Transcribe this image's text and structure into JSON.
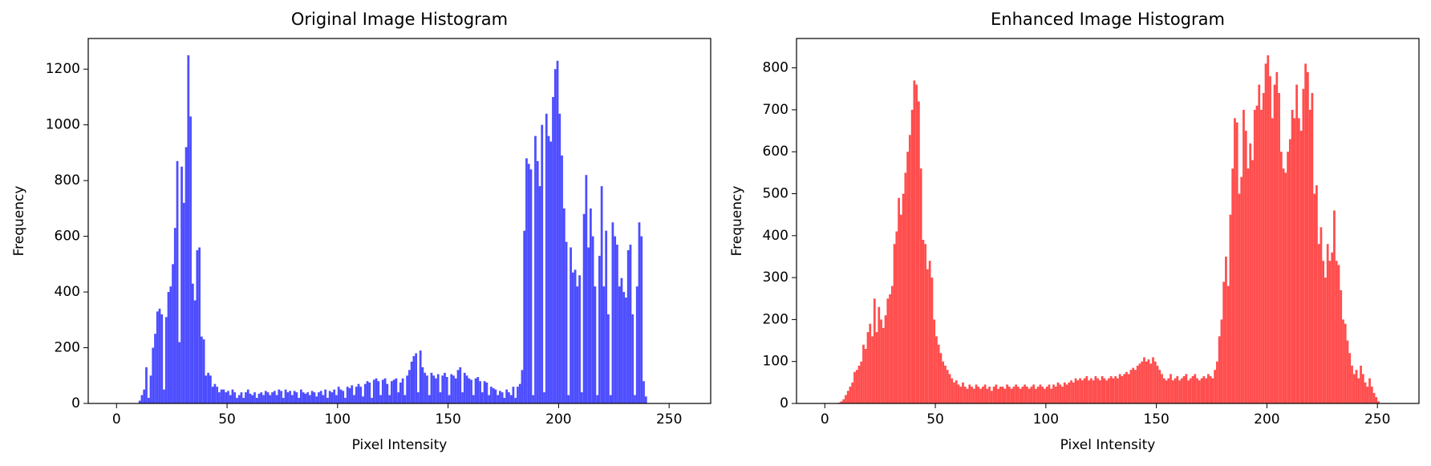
{
  "chart_data": [
    {
      "type": "histogram",
      "title": "Original Image Histogram",
      "xlabel": "Pixel Intensity",
      "ylabel": "Frequency",
      "color": "#4d4dff",
      "bins": [
        0,
        1,
        2,
        3,
        4,
        5,
        6,
        7,
        8,
        9,
        10,
        11,
        12,
        13,
        14,
        15,
        16,
        17,
        18,
        19,
        20,
        21,
        22,
        23,
        24,
        25,
        26,
        27,
        28,
        29,
        30,
        31,
        32,
        33,
        34,
        35,
        36,
        37,
        38,
        39,
        40,
        41,
        42,
        43,
        44,
        45,
        46,
        47,
        48,
        49,
        50,
        51,
        52,
        53,
        54,
        55,
        56,
        57,
        58,
        59,
        60,
        61,
        62,
        63,
        64,
        65,
        66,
        67,
        68,
        69,
        70,
        71,
        72,
        73,
        74,
        75,
        76,
        77,
        78,
        79,
        80,
        81,
        82,
        83,
        84,
        85,
        86,
        87,
        88,
        89,
        90,
        91,
        92,
        93,
        94,
        95,
        96,
        97,
        98,
        99,
        100,
        101,
        102,
        103,
        104,
        105,
        106,
        107,
        108,
        109,
        110,
        111,
        112,
        113,
        114,
        115,
        116,
        117,
        118,
        119,
        120,
        121,
        122,
        123,
        124,
        125,
        126,
        127,
        128,
        129,
        130,
        131,
        132,
        133,
        134,
        135,
        136,
        137,
        138,
        139,
        140,
        141,
        142,
        143,
        144,
        145,
        146,
        147,
        148,
        149,
        150,
        151,
        152,
        153,
        154,
        155,
        156,
        157,
        158,
        159,
        160,
        161,
        162,
        163,
        164,
        165,
        166,
        167,
        168,
        169,
        170,
        171,
        172,
        173,
        174,
        175,
        176,
        177,
        178,
        179,
        180,
        181,
        182,
        183,
        184,
        185,
        186,
        187,
        188,
        189,
        190,
        191,
        192,
        193,
        194,
        195,
        196,
        197,
        198,
        199,
        200,
        201,
        202,
        203,
        204,
        205,
        206,
        207,
        208,
        209,
        210,
        211,
        212,
        213,
        214,
        215,
        216,
        217,
        218,
        219,
        220,
        221,
        222,
        223,
        224,
        225,
        226,
        227,
        228,
        229,
        230,
        231,
        232,
        233,
        234,
        235,
        236,
        237,
        238,
        239,
        240,
        241,
        242,
        243,
        244,
        245,
        246,
        247,
        248,
        249,
        250,
        251,
        252,
        253,
        254,
        255,
        256
      ],
      "values": [
        0,
        0,
        0,
        0,
        0,
        0,
        0,
        0,
        0,
        0,
        10,
        30,
        50,
        130,
        20,
        100,
        200,
        250,
        330,
        340,
        320,
        50,
        310,
        400,
        420,
        500,
        630,
        870,
        220,
        850,
        720,
        920,
        1250,
        1030,
        430,
        370,
        550,
        560,
        240,
        230,
        100,
        110,
        100,
        60,
        70,
        60,
        40,
        50,
        50,
        40,
        45,
        30,
        50,
        40,
        20,
        30,
        40,
        20,
        40,
        50,
        35,
        30,
        40,
        20,
        35,
        40,
        30,
        45,
        40,
        30,
        40,
        45,
        30,
        50,
        45,
        20,
        50,
        40,
        45,
        30,
        45,
        40,
        20,
        50,
        40,
        35,
        40,
        30,
        45,
        40,
        25,
        40,
        45,
        30,
        50,
        20,
        45,
        40,
        50,
        30,
        60,
        50,
        45,
        20,
        60,
        55,
        65,
        30,
        60,
        70,
        60,
        25,
        70,
        80,
        75,
        20,
        85,
        90,
        80,
        30,
        85,
        90,
        70,
        30,
        80,
        85,
        90,
        40,
        75,
        90,
        30,
        100,
        120,
        150,
        170,
        180,
        40,
        190,
        130,
        110,
        100,
        30,
        110,
        100,
        90,
        105,
        40,
        100,
        110,
        95,
        30,
        105,
        100,
        90,
        120,
        130,
        40,
        110,
        100,
        90,
        85,
        30,
        90,
        95,
        80,
        40,
        80,
        75,
        30,
        60,
        55,
        50,
        30,
        45,
        40,
        20,
        50,
        40,
        30,
        60,
        20,
        60,
        70,
        120,
        620,
        880,
        860,
        840,
        30,
        960,
        870,
        780,
        1000,
        40,
        1040,
        960,
        940,
        1100,
        1200,
        1230,
        1040,
        890,
        700,
        580,
        30,
        560,
        470,
        480,
        420,
        460,
        40,
        680,
        820,
        560,
        700,
        600,
        420,
        30,
        530,
        780,
        420,
        620,
        320,
        30,
        650,
        600,
        570,
        420,
        450,
        400,
        380,
        550,
        570,
        320,
        30,
        420,
        650,
        600,
        80,
        25,
        0,
        0,
        0,
        0,
        0,
        0,
        0,
        0,
        0,
        0,
        0,
        0,
        0,
        0,
        0,
        0
      ],
      "xlim": [
        -12.8,
        268.8
      ],
      "ylim": [
        0,
        1310
      ],
      "xticks": [
        0,
        50,
        100,
        150,
        200,
        250
      ],
      "yticks": [
        0,
        200,
        400,
        600,
        800,
        1000,
        1200
      ]
    },
    {
      "type": "histogram",
      "title": "Enhanced Image Histogram",
      "xlabel": "Pixel Intensity",
      "ylabel": "Frequency",
      "color": "#ff4d4d",
      "bins": [
        0,
        1,
        2,
        3,
        4,
        5,
        6,
        7,
        8,
        9,
        10,
        11,
        12,
        13,
        14,
        15,
        16,
        17,
        18,
        19,
        20,
        21,
        22,
        23,
        24,
        25,
        26,
        27,
        28,
        29,
        30,
        31,
        32,
        33,
        34,
        35,
        36,
        37,
        38,
        39,
        40,
        41,
        42,
        43,
        44,
        45,
        46,
        47,
        48,
        49,
        50,
        51,
        52,
        53,
        54,
        55,
        56,
        57,
        58,
        59,
        60,
        61,
        62,
        63,
        64,
        65,
        66,
        67,
        68,
        69,
        70,
        71,
        72,
        73,
        74,
        75,
        76,
        77,
        78,
        79,
        80,
        81,
        82,
        83,
        84,
        85,
        86,
        87,
        88,
        89,
        90,
        91,
        92,
        93,
        94,
        95,
        96,
        97,
        98,
        99,
        100,
        101,
        102,
        103,
        104,
        105,
        106,
        107,
        108,
        109,
        110,
        111,
        112,
        113,
        114,
        115,
        116,
        117,
        118,
        119,
        120,
        121,
        122,
        123,
        124,
        125,
        126,
        127,
        128,
        129,
        130,
        131,
        132,
        133,
        134,
        135,
        136,
        137,
        138,
        139,
        140,
        141,
        142,
        143,
        144,
        145,
        146,
        147,
        148,
        149,
        150,
        151,
        152,
        153,
        154,
        155,
        156,
        157,
        158,
        159,
        160,
        161,
        162,
        163,
        164,
        165,
        166,
        167,
        168,
        169,
        170,
        171,
        172,
        173,
        174,
        175,
        176,
        177,
        178,
        179,
        180,
        181,
        182,
        183,
        184,
        185,
        186,
        187,
        188,
        189,
        190,
        191,
        192,
        193,
        194,
        195,
        196,
        197,
        198,
        199,
        200,
        201,
        202,
        203,
        204,
        205,
        206,
        207,
        208,
        209,
        210,
        211,
        212,
        213,
        214,
        215,
        216,
        217,
        218,
        219,
        220,
        221,
        222,
        223,
        224,
        225,
        226,
        227,
        228,
        229,
        230,
        231,
        232,
        233,
        234,
        235,
        236,
        237,
        238,
        239,
        240,
        241,
        242,
        243,
        244,
        245,
        246,
        247,
        248,
        249,
        250,
        251,
        252,
        253,
        254,
        255,
        256
      ],
      "values": [
        0,
        0,
        0,
        0,
        0,
        0,
        2,
        5,
        10,
        20,
        30,
        40,
        50,
        75,
        80,
        90,
        100,
        140,
        130,
        170,
        190,
        160,
        250,
        170,
        230,
        200,
        180,
        210,
        250,
        260,
        280,
        380,
        410,
        490,
        450,
        500,
        550,
        600,
        640,
        700,
        770,
        760,
        720,
        560,
        390,
        380,
        320,
        340,
        300,
        200,
        160,
        140,
        120,
        100,
        90,
        80,
        70,
        60,
        50,
        55,
        45,
        40,
        50,
        40,
        35,
        45,
        40,
        35,
        45,
        40,
        35,
        40,
        45,
        35,
        40,
        30,
        40,
        45,
        35,
        40,
        40,
        35,
        45,
        40,
        35,
        40,
        45,
        40,
        35,
        40,
        45,
        40,
        35,
        40,
        45,
        35,
        40,
        45,
        40,
        35,
        40,
        45,
        35,
        45,
        40,
        50,
        45,
        40,
        50,
        45,
        50,
        55,
        50,
        60,
        55,
        60,
        55,
        60,
        65,
        55,
        60,
        55,
        65,
        60,
        55,
        65,
        60,
        55,
        60,
        65,
        60,
        65,
        60,
        70,
        65,
        70,
        75,
        70,
        80,
        85,
        80,
        90,
        95,
        100,
        110,
        100,
        105,
        95,
        110,
        100,
        90,
        80,
        70,
        60,
        55,
        60,
        70,
        55,
        60,
        65,
        55,
        60,
        65,
        70,
        55,
        60,
        65,
        70,
        60,
        55,
        60,
        65,
        60,
        70,
        65,
        60,
        80,
        100,
        160,
        200,
        290,
        350,
        280,
        450,
        560,
        680,
        670,
        500,
        540,
        700,
        650,
        560,
        620,
        580,
        700,
        710,
        760,
        700,
        740,
        810,
        830,
        780,
        680,
        760,
        790,
        740,
        600,
        560,
        550,
        600,
        630,
        700,
        680,
        760,
        680,
        650,
        750,
        810,
        790,
        700,
        740,
        500,
        520,
        380,
        420,
        340,
        300,
        380,
        340,
        360,
        460,
        340,
        330,
        270,
        200,
        190,
        150,
        120,
        90,
        70,
        80,
        60,
        90,
        70,
        50,
        40,
        60,
        40,
        25,
        15,
        5,
        0,
        0,
        0,
        0,
        0
      ],
      "xlim": [
        -12.8,
        268.8
      ],
      "ylim": [
        0,
        870
      ],
      "xticks": [
        0,
        50,
        100,
        150,
        200,
        250
      ],
      "yticks": [
        0,
        100,
        200,
        300,
        400,
        500,
        600,
        700,
        800
      ]
    }
  ]
}
